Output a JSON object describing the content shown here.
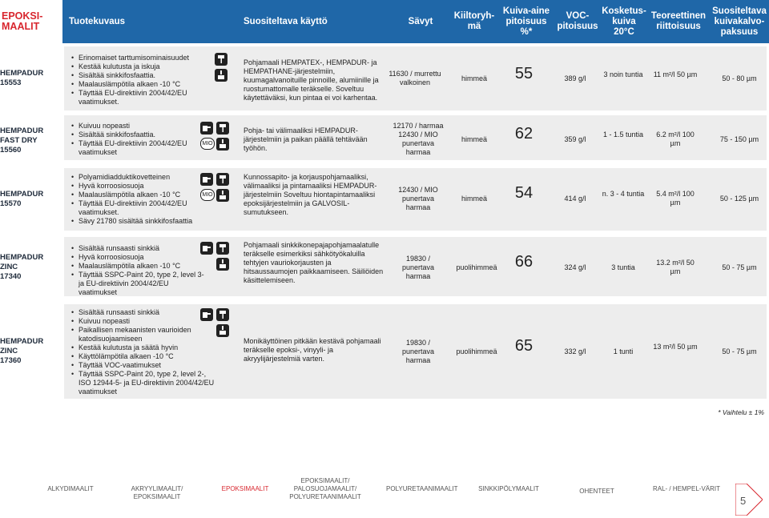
{
  "header": {
    "product": "EPOKSI-MAALIT",
    "cols": [
      "Tuotekuvaus",
      "Suositeltava käyttö",
      "Sävyt",
      "Kiiltoryh-mä",
      "Kuiva-aine pitoisuus %*",
      "VOC-pitoisuus",
      "Kosketus-kuiva 20°C",
      "Teoreettinen riittoisuus",
      "Suositeltava kuivakalvo-paksuus"
    ]
  },
  "rows": [
    {
      "product": [
        "HEMPADUR",
        "15553"
      ],
      "features": [
        "Erinomaiset tarttumisominaisuudet",
        "Kestää kulutusta ja iskuja",
        "Sisältää sinkkifosfaattia.",
        "Maalauslämpötila alkaen -10 °C",
        "Täyttää EU-direktiivin 2004/42/EU vaatimukset."
      ],
      "icons": [
        "roller-icon",
        "brush-icon"
      ],
      "usage": "Pohjamaali HEMPATEX-, HEMPADUR- ja HEMPATHANE-järjestelmiin, kuumagalvanoituille pinnoille, alumiinille ja ruostumattomalle teräkselle. Soveltuu käytettäväksi, kun pintaa ei voi karhentaa.",
      "shade": "11630 / murrettu valkoinen",
      "gloss": "himmeä",
      "solids": "55",
      "voc": "389 g/l",
      "dry": "3 noin tuntia",
      "coverage": "11 m²/l 50 µm",
      "thickness": "50 - 80 µm"
    },
    {
      "product": [
        "HEMPADUR",
        "FAST DRY",
        "15560"
      ],
      "features": [
        "Kuivuu nopeasti",
        "Sisältää sinkkifosfaattia.",
        "Täyttää EU-direktiivin 2004/42/EU vaatimukset"
      ],
      "icons": [
        "spray-icon",
        "roller-icon",
        "mio-badge",
        "brush-icon"
      ],
      "usage": "Pohja- tai välimaaliksi HEMPADUR-järjestelmiin ja paikan päällä tehtävään työhön.",
      "shade": "12170 / harmaa 12430 / MIO punertava harmaa",
      "gloss": "himmeä",
      "solids": "62",
      "voc": "359 g/l",
      "dry": "1 - 1.5 tuntia",
      "coverage": "6.2 m²/l 100 µm",
      "thickness": "75 - 150 µm"
    },
    {
      "product": [
        "HEMPADUR",
        "15570"
      ],
      "features": [
        "Polyamidiadduktikovetteinen",
        "Hyvä korroosiosuoja",
        "Maalauslämpötila alkaen -10 °C",
        "Täyttää EU-direktiivin 2004/42/EU vaatimukset.",
        "Sävy 21780 sisältää sinkkifosfaattia"
      ],
      "icons": [
        "spray-icon",
        "roller-icon",
        "mio-badge",
        "brush-icon"
      ],
      "usage": "Kunnossapito- ja korjauspohjamaaliksi, välimaaliksi ja pintamaaliksi HEMPADUR-järjestelmiin Soveltuu hiontapintamaaliksi epoksijärjestelmiin ja GALVOSIL-sumutukseen.",
      "shade": "12430 / MIO punertava harmaa",
      "gloss": "himmeä",
      "solids": "54",
      "voc": "414 g/l",
      "dry": "n. 3 - 4 tuntia",
      "coverage": "5.4 m²/l 100 µm",
      "thickness": "50 - 125 µm"
    },
    {
      "product": [
        "HEMPADUR",
        "ZINC",
        "17340"
      ],
      "features": [
        "Sisältää runsaasti sinkkiä",
        "Hyvä korroosiosuoja",
        "Maalauslämpötila alkaen -10 °C",
        "Täyttää SSPC-Paint 20, type 2, level 3- ja EU-direktiivin 2004/42/EU vaatimukset"
      ],
      "icons": [
        "spray-icon",
        "roller-icon",
        "brush-icon"
      ],
      "usage": "Pohjamaali sinkkikonepajapohjamaalatulle teräkselle esimerkiksi sähkötyökaluilla tehtyjen vauriokorjausten ja hitsaussaumojen paikkaamiseen. Säiliöiden käsittelemiseen.",
      "shade": "19830 / punertava harmaa",
      "gloss": "puolihimmeä",
      "solids": "66",
      "voc": "324 g/l",
      "dry": "3 tuntia",
      "coverage": "13.2 m²/l 50 µm",
      "thickness": "50 - 75 µm"
    },
    {
      "product": [
        "HEMPADUR",
        "ZINC",
        "17360"
      ],
      "features": [
        "Sisältää runsaasti sinkkiä",
        "Kuivuu nopeasti",
        "Paikallisen mekaanisten vaurioiden katodisuojaamiseen",
        "Kestää kulutusta ja säätä hyvin",
        "Käyttölämpötila alkaen -10 °C",
        "Täyttää VOC-vaatimukset",
        "Täyttää SSPC-Paint 20, type 2, level 2-, ISO 12944-5- ja EU-direktiivin 2004/42/EU vaatimukset"
      ],
      "icons": [
        "spray-icon",
        "roller-icon",
        "brush-icon"
      ],
      "usage": "Monikäyttöinen pitkään kestävä pohjamaali teräkselle epoksi-, vinyyli- ja akryylijärjestelmiä varten.",
      "shade": "19830 / punertava harmaa",
      "gloss": "puolihimmeä",
      "solids": "65",
      "voc": "332 g/l",
      "dry": "1 tunti",
      "coverage": "13 m²/l 50 µm",
      "thickness": "50 - 75 µm"
    }
  ],
  "note": "* Vaihtelu ± 1%",
  "mio_label": "MIO",
  "footer": [
    "ALKYDIMAALIT",
    "AKRYYLIMAALIT/ EPOKSIMAALIT",
    "EPOKSIMAALIT",
    "EPOKSIMAALIT/ PALOSUOJAMAALIT/ POLYURETAANIMAALIT",
    "POLYURETAANIMAALIT",
    "SINKKIPÖLYMAALIT",
    "OHENTEET",
    "RAL- / HEMPEL-VÄRIT"
  ],
  "page_number": "5",
  "colors": {
    "header": "#1f67a8",
    "brand": "#d8262e",
    "row": "#ededed"
  }
}
